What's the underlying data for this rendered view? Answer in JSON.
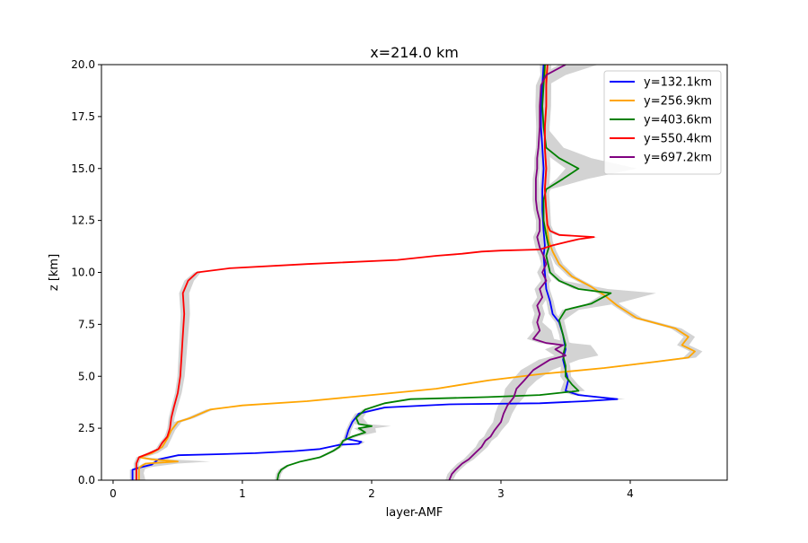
{
  "chart_data": {
    "type": "line",
    "title": "x=214.0 km",
    "xlabel": "layer-AMF",
    "ylabel": "z [km]",
    "xlim": [
      -0.09,
      4.75
    ],
    "ylim": [
      0,
      20
    ],
    "xticks": [
      0,
      1,
      2,
      3,
      4
    ],
    "xtick_labels": [
      "0",
      "1",
      "2",
      "3",
      "4"
    ],
    "yticks": [
      0,
      2.5,
      5,
      7.5,
      10,
      12.5,
      15,
      17.5,
      20
    ],
    "ytick_labels": [
      "0.0",
      "2.5",
      "5.0",
      "7.5",
      "10.0",
      "12.5",
      "15.0",
      "17.5",
      "20.0"
    ],
    "grid": false,
    "legend_position": "top-right",
    "band_color": "#d3d3d3",
    "series": [
      {
        "name": "y=132.1km",
        "color": "#0000ff",
        "points": [
          [
            0.15,
            0.0
          ],
          [
            0.15,
            0.5
          ],
          [
            0.2,
            0.6
          ],
          [
            0.3,
            0.75
          ],
          [
            0.35,
            1.0
          ],
          [
            0.5,
            1.2
          ],
          [
            0.8,
            1.25
          ],
          [
            1.1,
            1.3
          ],
          [
            1.4,
            1.4
          ],
          [
            1.6,
            1.5
          ],
          [
            1.75,
            1.7
          ],
          [
            1.9,
            1.75
          ],
          [
            1.92,
            1.85
          ],
          [
            1.8,
            2.0
          ],
          [
            1.82,
            2.4
          ],
          [
            1.85,
            2.8
          ],
          [
            1.9,
            3.2
          ],
          [
            2.1,
            3.5
          ],
          [
            2.6,
            3.65
          ],
          [
            3.3,
            3.7
          ],
          [
            3.65,
            3.8
          ],
          [
            3.9,
            3.9
          ],
          [
            3.6,
            4.1
          ],
          [
            3.5,
            4.3
          ],
          [
            3.52,
            4.8
          ],
          [
            3.5,
            5.3
          ],
          [
            3.48,
            5.8
          ],
          [
            3.5,
            6.3
          ],
          [
            3.48,
            7.0
          ],
          [
            3.45,
            7.6
          ],
          [
            3.4,
            8.0
          ],
          [
            3.38,
            8.6
          ],
          [
            3.35,
            9.2
          ],
          [
            3.34,
            10.0
          ],
          [
            3.33,
            10.8
          ],
          [
            3.34,
            11.3
          ],
          [
            3.33,
            12.0
          ],
          [
            3.32,
            13.0
          ],
          [
            3.32,
            14.0
          ],
          [
            3.33,
            15.0
          ],
          [
            3.32,
            16.0
          ],
          [
            3.31,
            17.0
          ],
          [
            3.31,
            18.0
          ],
          [
            3.32,
            19.0
          ],
          [
            3.33,
            20.0
          ]
        ],
        "band": [
          [
            0.02,
            0.1,
            0.0
          ],
          [
            0.02,
            0.06,
            1.0
          ],
          [
            0.02,
            0.03,
            1.3
          ],
          [
            0.02,
            0.02,
            3.0
          ],
          [
            0.06,
            0.06,
            3.9
          ],
          [
            0.03,
            0.03,
            4.5
          ],
          [
            0.03,
            0.03,
            8.0
          ],
          [
            0.02,
            0.02,
            12.0
          ],
          [
            0.02,
            0.02,
            20.0
          ]
        ]
      },
      {
        "name": "y=256.9km",
        "color": "#ffa500",
        "points": [
          [
            0.2,
            0.0
          ],
          [
            0.2,
            0.5
          ],
          [
            0.2,
            0.6
          ],
          [
            0.25,
            0.8
          ],
          [
            0.5,
            0.9
          ],
          [
            0.3,
            1.0
          ],
          [
            0.2,
            1.1
          ],
          [
            0.3,
            1.3
          ],
          [
            0.38,
            1.6
          ],
          [
            0.42,
            2.0
          ],
          [
            0.45,
            2.4
          ],
          [
            0.5,
            2.8
          ],
          [
            0.6,
            3.0
          ],
          [
            0.75,
            3.4
          ],
          [
            1.0,
            3.6
          ],
          [
            1.5,
            3.8
          ],
          [
            2.0,
            4.1
          ],
          [
            2.5,
            4.4
          ],
          [
            2.9,
            4.8
          ],
          [
            3.3,
            5.1
          ],
          [
            3.8,
            5.4
          ],
          [
            4.2,
            5.7
          ],
          [
            4.45,
            5.9
          ],
          [
            4.5,
            6.2
          ],
          [
            4.4,
            6.5
          ],
          [
            4.45,
            6.9
          ],
          [
            4.35,
            7.3
          ],
          [
            4.05,
            7.8
          ],
          [
            3.9,
            8.4
          ],
          [
            3.8,
            8.9
          ],
          [
            3.7,
            9.3
          ],
          [
            3.55,
            9.8
          ],
          [
            3.45,
            10.4
          ],
          [
            3.4,
            11.0
          ],
          [
            3.37,
            11.5
          ],
          [
            3.36,
            12.0
          ],
          [
            3.35,
            13.0
          ],
          [
            3.34,
            14.0
          ],
          [
            3.35,
            15.0
          ],
          [
            3.34,
            16.0
          ],
          [
            3.34,
            17.0
          ],
          [
            3.35,
            18.0
          ],
          [
            3.35,
            19.0
          ],
          [
            3.34,
            20.0
          ]
        ],
        "band": [
          [
            0.02,
            0.02,
            0.0
          ],
          [
            0.02,
            0.05,
            0.6
          ],
          [
            0.02,
            0.3,
            0.85
          ],
          [
            0.02,
            0.05,
            1.1
          ],
          [
            0.03,
            0.03,
            2.0
          ],
          [
            0.03,
            0.03,
            4.0
          ],
          [
            0.04,
            0.06,
            6.0
          ],
          [
            0.03,
            0.03,
            9.0
          ],
          [
            0.03,
            0.03,
            12.0
          ],
          [
            0.04,
            0.04,
            20.0
          ]
        ]
      },
      {
        "name": "y=403.6km",
        "color": "#008000",
        "points": [
          [
            1.27,
            0.0
          ],
          [
            1.28,
            0.3
          ],
          [
            1.3,
            0.5
          ],
          [
            1.35,
            0.7
          ],
          [
            1.45,
            0.9
          ],
          [
            1.6,
            1.1
          ],
          [
            1.7,
            1.4
          ],
          [
            1.75,
            1.6
          ],
          [
            1.78,
            1.9
          ],
          [
            1.85,
            2.1
          ],
          [
            1.95,
            2.3
          ],
          [
            1.9,
            2.5
          ],
          [
            2.0,
            2.6
          ],
          [
            1.9,
            2.7
          ],
          [
            1.88,
            3.0
          ],
          [
            1.95,
            3.4
          ],
          [
            2.1,
            3.7
          ],
          [
            2.3,
            3.9
          ],
          [
            2.9,
            4.0
          ],
          [
            3.3,
            4.1
          ],
          [
            3.6,
            4.3
          ],
          [
            3.55,
            4.6
          ],
          [
            3.5,
            5.0
          ],
          [
            3.5,
            5.5
          ],
          [
            3.48,
            6.0
          ],
          [
            3.5,
            6.5
          ],
          [
            3.48,
            7.0
          ],
          [
            3.45,
            7.7
          ],
          [
            3.5,
            8.2
          ],
          [
            3.7,
            8.5
          ],
          [
            3.85,
            9.0
          ],
          [
            3.6,
            9.2
          ],
          [
            3.45,
            9.6
          ],
          [
            3.38,
            10.0
          ],
          [
            3.35,
            10.8
          ],
          [
            3.37,
            11.2
          ],
          [
            3.35,
            11.8
          ],
          [
            3.33,
            12.5
          ],
          [
            3.33,
            13.5
          ],
          [
            3.35,
            14.0
          ],
          [
            3.48,
            14.5
          ],
          [
            3.6,
            15.0
          ],
          [
            3.45,
            15.5
          ],
          [
            3.35,
            16.0
          ],
          [
            3.33,
            17.0
          ],
          [
            3.32,
            18.0
          ],
          [
            3.33,
            19.0
          ],
          [
            3.34,
            20.0
          ]
        ],
        "band": [
          [
            0.02,
            0.02,
            0.0
          ],
          [
            0.02,
            0.02,
            2.0
          ],
          [
            0.04,
            0.15,
            2.6
          ],
          [
            0.04,
            0.12,
            2.0
          ],
          [
            0.02,
            0.02,
            3.5
          ],
          [
            0.05,
            0.05,
            4.3
          ],
          [
            0.03,
            0.03,
            6.0
          ],
          [
            0.02,
            0.04,
            8.0
          ],
          [
            0.05,
            0.35,
            9.0
          ],
          [
            0.02,
            0.04,
            9.5
          ],
          [
            0.02,
            0.02,
            13.5
          ],
          [
            0.02,
            0.04,
            14.2
          ],
          [
            0.1,
            0.45,
            15.0
          ],
          [
            0.06,
            0.25,
            15.5
          ],
          [
            0.02,
            0.02,
            16.5
          ],
          [
            0.02,
            0.02,
            20.0
          ]
        ]
      },
      {
        "name": "y=550.4km",
        "color": "#ff0000",
        "points": [
          [
            0.18,
            0.0
          ],
          [
            0.18,
            0.8
          ],
          [
            0.2,
            1.1
          ],
          [
            0.28,
            1.3
          ],
          [
            0.35,
            1.5
          ],
          [
            0.38,
            1.8
          ],
          [
            0.42,
            2.1
          ],
          [
            0.44,
            2.5
          ],
          [
            0.45,
            3.0
          ],
          [
            0.47,
            3.5
          ],
          [
            0.5,
            4.2
          ],
          [
            0.52,
            5.0
          ],
          [
            0.53,
            6.0
          ],
          [
            0.54,
            7.0
          ],
          [
            0.55,
            8.0
          ],
          [
            0.54,
            9.0
          ],
          [
            0.58,
            9.6
          ],
          [
            0.65,
            10.0
          ],
          [
            0.9,
            10.2
          ],
          [
            1.5,
            10.4
          ],
          [
            2.2,
            10.6
          ],
          [
            2.5,
            10.8
          ],
          [
            2.7,
            10.9
          ],
          [
            2.85,
            11.0
          ],
          [
            3.0,
            11.05
          ],
          [
            3.3,
            11.1
          ],
          [
            3.4,
            11.3
          ],
          [
            3.5,
            11.45
          ],
          [
            3.6,
            11.6
          ],
          [
            3.72,
            11.7
          ],
          [
            3.45,
            11.8
          ],
          [
            3.38,
            12.0
          ],
          [
            3.36,
            12.3
          ],
          [
            3.35,
            13.0
          ],
          [
            3.34,
            14.0
          ],
          [
            3.35,
            15.0
          ],
          [
            3.34,
            16.0
          ],
          [
            3.34,
            17.0
          ],
          [
            3.35,
            18.0
          ],
          [
            3.35,
            19.0
          ],
          [
            3.36,
            20.0
          ]
        ],
        "band": [
          [
            0.02,
            0.02,
            0.0
          ],
          [
            0.02,
            0.02,
            1.5
          ],
          [
            0.02,
            0.03,
            4.0
          ],
          [
            0.03,
            0.05,
            9.5
          ],
          [
            0.02,
            0.02,
            10.2
          ],
          [
            0.02,
            0.02,
            11.0
          ],
          [
            0.03,
            0.03,
            11.7
          ],
          [
            0.02,
            0.02,
            13.0
          ],
          [
            0.02,
            0.03,
            20.0
          ]
        ]
      },
      {
        "name": "y=697.2km",
        "color": "#800080",
        "points": [
          [
            2.6,
            0.0
          ],
          [
            2.62,
            0.3
          ],
          [
            2.65,
            0.5
          ],
          [
            2.7,
            0.8
          ],
          [
            2.75,
            1.0
          ],
          [
            2.8,
            1.3
          ],
          [
            2.85,
            1.6
          ],
          [
            2.88,
            1.9
          ],
          [
            2.92,
            2.1
          ],
          [
            2.95,
            2.4
          ],
          [
            3.0,
            2.8
          ],
          [
            3.02,
            3.2
          ],
          [
            3.05,
            3.6
          ],
          [
            3.1,
            4.0
          ],
          [
            3.12,
            4.4
          ],
          [
            3.18,
            4.8
          ],
          [
            3.25,
            5.3
          ],
          [
            3.38,
            5.8
          ],
          [
            3.5,
            6.0
          ],
          [
            3.42,
            6.3
          ],
          [
            3.48,
            6.5
          ],
          [
            3.35,
            6.6
          ],
          [
            3.25,
            6.8
          ],
          [
            3.3,
            7.2
          ],
          [
            3.28,
            7.6
          ],
          [
            3.3,
            8.0
          ],
          [
            3.28,
            8.4
          ],
          [
            3.32,
            8.8
          ],
          [
            3.3,
            9.2
          ],
          [
            3.35,
            9.6
          ],
          [
            3.32,
            10.0
          ],
          [
            3.35,
            10.4
          ],
          [
            3.33,
            10.8
          ],
          [
            3.3,
            11.2
          ],
          [
            3.28,
            11.7
          ],
          [
            3.3,
            12.0
          ],
          [
            3.3,
            12.5
          ],
          [
            3.28,
            13.0
          ],
          [
            3.27,
            13.5
          ],
          [
            3.27,
            14.0
          ],
          [
            3.27,
            14.5
          ],
          [
            3.28,
            15.0
          ],
          [
            3.28,
            15.5
          ],
          [
            3.29,
            16.0
          ],
          [
            3.3,
            17.0
          ],
          [
            3.3,
            18.0
          ],
          [
            3.31,
            19.0
          ],
          [
            3.35,
            19.5
          ],
          [
            3.5,
            20.0
          ]
        ],
        "band": [
          [
            0.03,
            0.03,
            0.0
          ],
          [
            0.05,
            0.05,
            2.0
          ],
          [
            0.07,
            0.07,
            3.5
          ],
          [
            0.1,
            0.1,
            5.0
          ],
          [
            0.08,
            0.3,
            6.3
          ],
          [
            0.06,
            0.3,
            6.0
          ],
          [
            0.04,
            0.04,
            7.5
          ],
          [
            0.04,
            0.04,
            10.0
          ],
          [
            0.03,
            0.03,
            12.0
          ],
          [
            0.02,
            0.02,
            16.0
          ],
          [
            0.04,
            0.05,
            19.0
          ],
          [
            0.05,
            0.25,
            20.0
          ]
        ]
      }
    ]
  }
}
